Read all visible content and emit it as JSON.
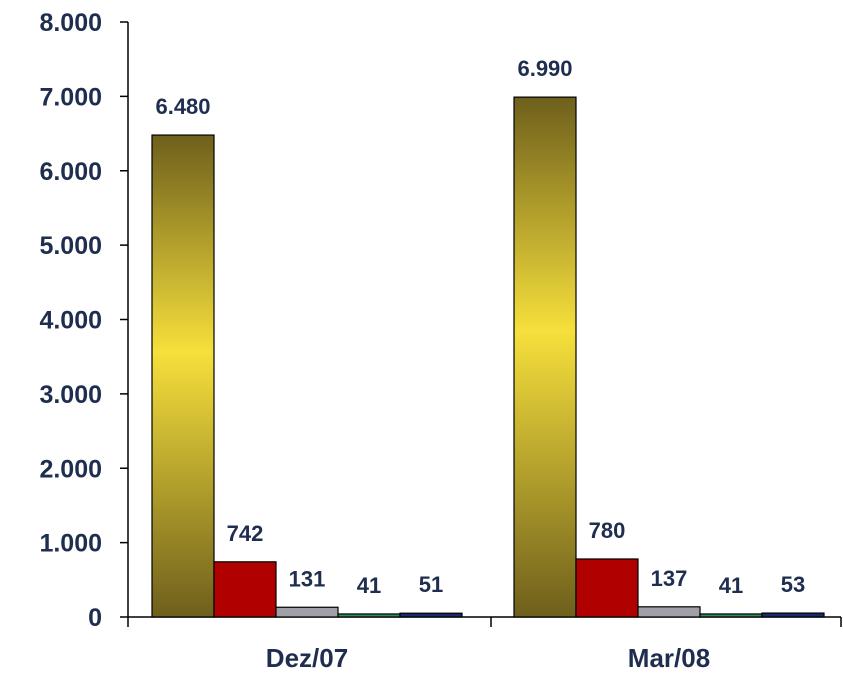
{
  "chart_data": {
    "type": "bar",
    "categories": [
      "Dez/07",
      "Mar/08"
    ],
    "series": [
      {
        "values": [
          6480,
          6990
        ],
        "labels": [
          "6.480",
          "6.990"
        ],
        "color": "#f4dc3a"
      },
      {
        "values": [
          742,
          780
        ],
        "labels": [
          "742",
          "780"
        ],
        "color": "#b00000"
      },
      {
        "values": [
          131,
          137
        ],
        "labels": [
          "131",
          "137"
        ],
        "color": "#a0a0a8"
      },
      {
        "values": [
          41,
          41
        ],
        "labels": [
          "41",
          "41"
        ],
        "color": "#2e8b57"
      },
      {
        "values": [
          51,
          53
        ],
        "labels": [
          "51",
          "53"
        ],
        "color": "#1a2a6c"
      }
    ],
    "yticks": [
      {
        "value": 0,
        "label": "0"
      },
      {
        "value": 1000,
        "label": "1.000"
      },
      {
        "value": 2000,
        "label": "2.000"
      },
      {
        "value": 3000,
        "label": "3.000"
      },
      {
        "value": 4000,
        "label": "4.000"
      },
      {
        "value": 5000,
        "label": "5.000"
      },
      {
        "value": 6000,
        "label": "6.000"
      },
      {
        "value": 7000,
        "label": "7.000"
      },
      {
        "value": 8000,
        "label": "8.000"
      }
    ],
    "ylim": [
      0,
      8000
    ],
    "grid": false,
    "title": "",
    "xlabel": "",
    "ylabel": ""
  }
}
